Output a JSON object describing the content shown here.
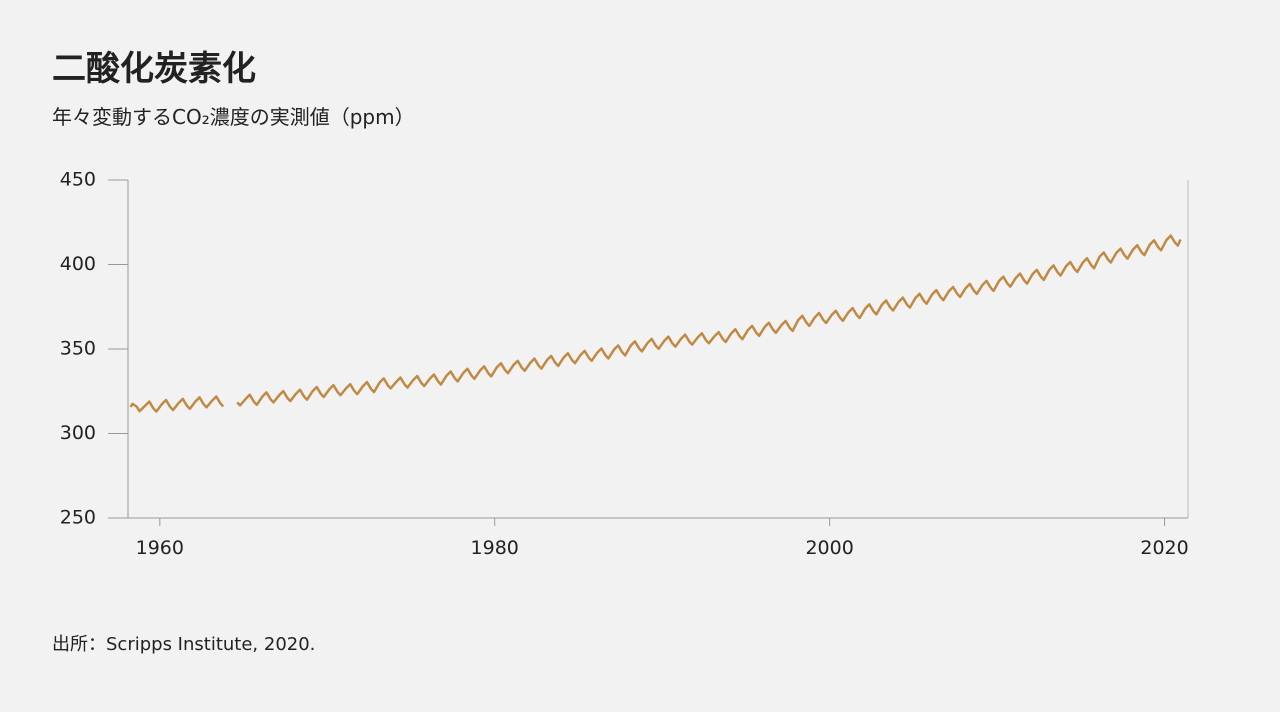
{
  "chart_data": {
    "type": "line",
    "title": "二酸化炭素化",
    "subtitle": "年々変動するCO₂濃度の実測値（ppm）",
    "source": "出所：Scripps Institute, 2020.",
    "xlim": [
      1958.1,
      2021.4
    ],
    "ylim": [
      250,
      450
    ],
    "xticks": [
      1960,
      1980,
      2000,
      2020
    ],
    "yticks": [
      250,
      300,
      350,
      400,
      450
    ],
    "grid": false,
    "x": [
      1958.25,
      1958.37,
      1958.62,
      1958.79,
      1959.12,
      1959.37,
      1959.62,
      1959.79,
      1960.12,
      1960.37,
      1960.62,
      1960.79,
      1961.12,
      1961.37,
      1961.62,
      1961.79,
      1962.12,
      1962.37,
      1962.62,
      1962.79,
      1963.12,
      1963.37,
      1963.62,
      1963.79,
      1964.12,
      1964.37,
      1964.62,
      1964.79,
      1965.12,
      1965.37,
      1965.62,
      1965.79,
      1966.12,
      1966.37,
      1966.62,
      1966.79,
      1967.12,
      1967.37,
      1967.62,
      1967.79,
      1968.12,
      1968.37,
      1968.62,
      1968.79,
      1969.12,
      1969.37,
      1969.62,
      1969.79,
      1970.12,
      1970.37,
      1970.62,
      1970.79,
      1971.12,
      1971.37,
      1971.62,
      1971.79,
      1972.12,
      1972.37,
      1972.62,
      1972.79,
      1973.12,
      1973.37,
      1973.62,
      1973.79,
      1974.12,
      1974.37,
      1974.62,
      1974.79,
      1975.12,
      1975.37,
      1975.62,
      1975.79,
      1976.12,
      1976.37,
      1976.62,
      1976.79,
      1977.12,
      1977.37,
      1977.62,
      1977.79,
      1978.12,
      1978.37,
      1978.62,
      1978.79,
      1979.12,
      1979.37,
      1979.62,
      1979.79,
      1980.12,
      1980.37,
      1980.62,
      1980.79,
      1981.12,
      1981.37,
      1981.62,
      1981.79,
      1982.12,
      1982.37,
      1982.62,
      1982.79,
      1983.12,
      1983.37,
      1983.62,
      1983.79,
      1984.12,
      1984.37,
      1984.62,
      1984.79,
      1985.12,
      1985.37,
      1985.62,
      1985.79,
      1986.12,
      1986.37,
      1986.62,
      1986.79,
      1987.12,
      1987.37,
      1987.62,
      1987.79,
      1988.12,
      1988.37,
      1988.62,
      1988.79,
      1989.12,
      1989.37,
      1989.62,
      1989.79,
      1990.12,
      1990.37,
      1990.62,
      1990.79,
      1991.12,
      1991.37,
      1991.62,
      1991.79,
      1992.12,
      1992.37,
      1992.62,
      1992.79,
      1993.12,
      1993.37,
      1993.62,
      1993.79,
      1994.12,
      1994.37,
      1994.62,
      1994.79,
      1995.12,
      1995.37,
      1995.62,
      1995.79,
      1996.12,
      1996.37,
      1996.62,
      1996.79,
      1997.12,
      1997.37,
      1997.62,
      1997.79,
      1998.12,
      1998.37,
      1998.62,
      1998.79,
      1999.12,
      1999.37,
      1999.62,
      1999.79,
      2000.12,
      2000.37,
      2000.62,
      2000.79,
      2001.12,
      2001.37,
      2001.62,
      2001.79,
      2002.12,
      2002.37,
      2002.62,
      2002.79,
      2003.12,
      2003.37,
      2003.62,
      2003.79,
      2004.12,
      2004.37,
      2004.62,
      2004.79,
      2005.12,
      2005.37,
      2005.62,
      2005.79,
      2006.12,
      2006.37,
      2006.62,
      2006.79,
      2007.12,
      2007.37,
      2007.62,
      2007.79,
      2008.12,
      2008.37,
      2008.62,
      2008.79,
      2009.12,
      2009.37,
      2009.62,
      2009.79,
      2010.12,
      2010.37,
      2010.62,
      2010.79,
      2011.12,
      2011.37,
      2011.62,
      2011.79,
      2012.12,
      2012.37,
      2012.62,
      2012.79,
      2013.12,
      2013.37,
      2013.62,
      2013.79,
      2014.12,
      2014.37,
      2014.62,
      2014.79,
      2015.12,
      2015.37,
      2015.62,
      2015.79,
      2016.12,
      2016.37,
      2016.62,
      2016.79,
      2017.12,
      2017.37,
      2017.62,
      2017.79,
      2018.12,
      2018.37,
      2018.62,
      2018.79,
      2019.12,
      2019.37,
      2019.62,
      2019.79,
      2020.12,
      2020.37,
      2020.62,
      2020.79,
      2020.95
    ],
    "series": [
      {
        "color": "#c08a45",
        "values": [
          315.7,
          317.5,
          315.9,
          313.2,
          316.4,
          318.9,
          314.8,
          313.0,
          317.3,
          319.8,
          315.7,
          313.9,
          318.0,
          320.5,
          316.4,
          314.6,
          318.9,
          321.4,
          317.3,
          315.5,
          319.4,
          321.9,
          317.8,
          316.0,
          null,
          null,
          318.4,
          316.6,
          320.4,
          322.9,
          318.8,
          317.0,
          321.8,
          324.3,
          320.2,
          318.4,
          322.6,
          325.1,
          321.0,
          319.2,
          323.4,
          325.9,
          321.8,
          320.0,
          325.0,
          327.5,
          323.4,
          321.6,
          326.1,
          328.6,
          324.5,
          322.7,
          326.7,
          329.2,
          325.1,
          323.3,
          327.9,
          330.4,
          326.3,
          324.5,
          330.1,
          332.6,
          328.5,
          326.7,
          330.6,
          333.1,
          329.0,
          327.2,
          331.5,
          334.0,
          329.9,
          328.1,
          332.4,
          334.9,
          330.8,
          329.0,
          334.2,
          336.7,
          332.6,
          330.8,
          335.8,
          338.3,
          334.2,
          332.4,
          337.2,
          339.7,
          335.6,
          333.8,
          339.1,
          341.6,
          337.5,
          335.7,
          340.5,
          343.0,
          338.9,
          337.1,
          341.8,
          344.3,
          340.2,
          338.4,
          343.4,
          345.9,
          341.8,
          340.0,
          345.0,
          347.5,
          343.4,
          341.6,
          346.4,
          348.9,
          344.8,
          343.0,
          347.8,
          350.3,
          346.2,
          344.4,
          349.6,
          352.1,
          348.0,
          346.2,
          352.0,
          354.5,
          350.4,
          348.6,
          353.5,
          356.0,
          351.9,
          350.1,
          354.8,
          357.3,
          353.2,
          351.4,
          356.0,
          358.5,
          354.4,
          352.6,
          356.8,
          359.3,
          355.2,
          353.4,
          357.5,
          360.0,
          355.9,
          354.1,
          359.2,
          361.7,
          357.6,
          355.8,
          361.2,
          363.7,
          359.6,
          357.8,
          363.0,
          365.5,
          361.4,
          359.6,
          364.1,
          366.6,
          362.5,
          360.7,
          367.1,
          369.6,
          365.5,
          363.7,
          368.8,
          371.3,
          367.2,
          365.4,
          370.1,
          372.6,
          368.5,
          366.7,
          371.7,
          374.2,
          370.1,
          368.3,
          373.9,
          376.4,
          372.3,
          370.5,
          376.2,
          378.7,
          374.6,
          372.8,
          377.9,
          380.4,
          376.3,
          374.5,
          380.2,
          382.7,
          378.6,
          376.8,
          382.3,
          384.8,
          380.7,
          378.9,
          384.2,
          386.7,
          382.6,
          380.8,
          386.0,
          388.5,
          384.4,
          382.6,
          387.8,
          390.3,
          386.2,
          384.4,
          390.3,
          392.8,
          388.7,
          386.9,
          392.1,
          394.6,
          390.5,
          388.7,
          394.3,
          396.8,
          392.7,
          390.9,
          396.9,
          399.4,
          395.3,
          393.5,
          399.0,
          401.5,
          397.4,
          395.6,
          401.2,
          403.7,
          399.6,
          397.8,
          404.6,
          407.1,
          403.0,
          401.2,
          406.9,
          409.4,
          405.3,
          403.5,
          408.9,
          411.4,
          407.3,
          405.5,
          411.8,
          414.3,
          410.2,
          408.4,
          414.6,
          417.1,
          413.0,
          411.2,
          414.8
        ]
      }
    ]
  }
}
